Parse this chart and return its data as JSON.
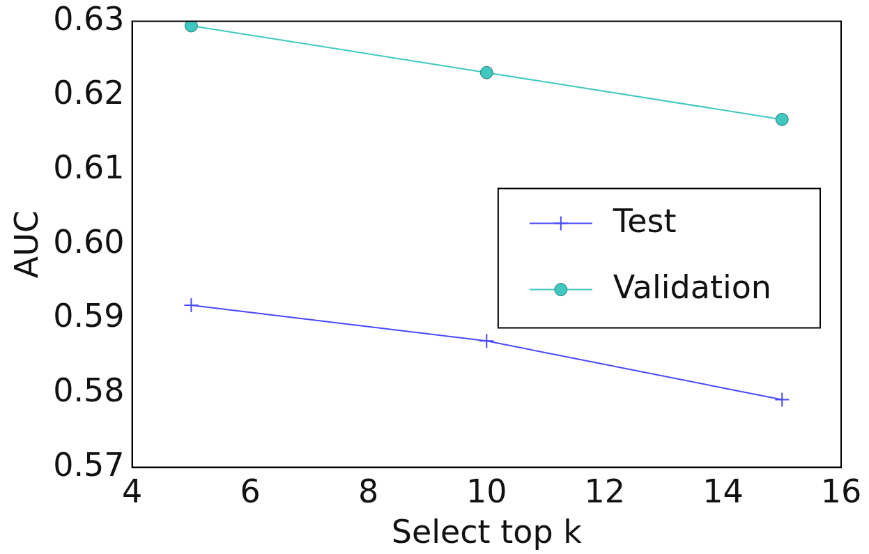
{
  "chart_data": {
    "type": "line",
    "xlabel": "Select top k",
    "ylabel": "AUC",
    "x": [
      5,
      10,
      15
    ],
    "series": [
      {
        "name": "Test",
        "color": "#4848ff",
        "marker": "cross",
        "values": [
          0.5918,
          0.587,
          0.5791
        ]
      },
      {
        "name": "Validation",
        "color": "#40c8c0",
        "marker": "circle",
        "values": [
          0.6294,
          0.6231,
          0.6168
        ]
      }
    ],
    "xlim": [
      4,
      16
    ],
    "xticks": [
      4,
      6,
      8,
      10,
      12,
      14,
      16
    ],
    "ylim": [
      0.57,
      0.63
    ],
    "yticks": [
      {
        "value": 0.57,
        "label": "0.57"
      },
      {
        "value": 0.58,
        "label": "0.58"
      },
      {
        "value": 0.59,
        "label": "0.59"
      },
      {
        "value": 0.6,
        "label": "0.60"
      },
      {
        "value": 0.61,
        "label": "0.61"
      },
      {
        "value": 0.62,
        "label": "0.62"
      },
      {
        "value": 0.63,
        "label": "0.63"
      }
    ],
    "grid": false,
    "legend": "center right",
    "line_style": "solid"
  }
}
